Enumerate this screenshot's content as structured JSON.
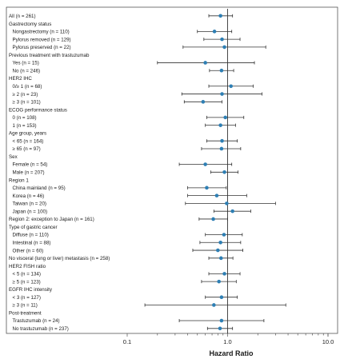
{
  "chart_data": {
    "type": "forest",
    "xlabel": "Hazard Ratio",
    "xscale": "log",
    "xlim": [
      0.1,
      10.0
    ],
    "xticks": [
      {
        "value": 0.1,
        "label": "0.1"
      },
      {
        "value": 1.0,
        "label": "1.0"
      },
      {
        "value": 10.0,
        "label": "10.0"
      }
    ],
    "reference_line": 1.0,
    "colors": {
      "point": "#2e7fb4",
      "ci": "#333333",
      "reference": "#1a1a1a",
      "frame": "#555555"
    },
    "rows": [
      {
        "label": "All (n = 261)",
        "indent": 0,
        "hr": 0.85,
        "lo": 0.65,
        "hi": 1.12
      },
      {
        "label": "Gastrectomy status",
        "indent": 0
      },
      {
        "label": "Nongastrectomy (n = 110)",
        "indent": 1,
        "hr": 0.74,
        "lo": 0.5,
        "hi": 1.1
      },
      {
        "label": "Pylorus removed (n = 129)",
        "indent": 1,
        "hr": 0.88,
        "lo": 0.58,
        "hi": 1.33
      },
      {
        "label": "Pylorus preserved (n = 22)",
        "indent": 1,
        "hr": 0.93,
        "lo": 0.36,
        "hi": 2.4
      },
      {
        "label": "Previous treatment with trastuzumab",
        "indent": 0
      },
      {
        "label": "Yes (n = 15)",
        "indent": 1,
        "hr": 0.6,
        "lo": 0.2,
        "hi": 1.85
      },
      {
        "label": "No (n = 246)",
        "indent": 1,
        "hr": 0.87,
        "lo": 0.66,
        "hi": 1.15
      },
      {
        "label": "HER2 IHC",
        "indent": 0
      },
      {
        "label": "0/≥ 1 (n = 68)",
        "indent": 1,
        "hr": 1.08,
        "lo": 0.65,
        "hi": 1.8
      },
      {
        "label": "≥ 2 (n = 23)",
        "indent": 1,
        "hr": 0.88,
        "lo": 0.35,
        "hi": 2.2
      },
      {
        "label": "≥ 3 (n = 101)",
        "indent": 1,
        "hr": 0.57,
        "lo": 0.37,
        "hi": 0.88
      },
      {
        "label": "ECOG performance status",
        "indent": 0
      },
      {
        "label": "0 (n = 108)",
        "indent": 1,
        "hr": 0.95,
        "lo": 0.62,
        "hi": 1.45
      },
      {
        "label": "1 (n = 153)",
        "indent": 1,
        "hr": 0.85,
        "lo": 0.6,
        "hi": 1.2
      },
      {
        "label": "Age group, years",
        "indent": 0
      },
      {
        "label": "< 65 (n = 164)",
        "indent": 1,
        "hr": 0.88,
        "lo": 0.62,
        "hi": 1.25
      },
      {
        "label": "≥ 65 (n = 97)",
        "indent": 1,
        "hr": 0.87,
        "lo": 0.55,
        "hi": 1.35
      },
      {
        "label": "Sex",
        "indent": 0
      },
      {
        "label": "Female (n = 54)",
        "indent": 1,
        "hr": 0.6,
        "lo": 0.33,
        "hi": 1.1
      },
      {
        "label": "Male (n = 207)",
        "indent": 1,
        "hr": 0.93,
        "lo": 0.68,
        "hi": 1.27
      },
      {
        "label": "Region 1",
        "indent": 0
      },
      {
        "label": "China mainland (n = 95)",
        "indent": 1,
        "hr": 0.62,
        "lo": 0.4,
        "hi": 0.97
      },
      {
        "label": "Korea (n = 46)",
        "indent": 1,
        "hr": 0.78,
        "lo": 0.4,
        "hi": 1.55
      },
      {
        "label": "Taiwan (n = 20)",
        "indent": 1,
        "hr": 0.98,
        "lo": 0.38,
        "hi": 3.0
      },
      {
        "label": "Japan (n = 100)",
        "indent": 1,
        "hr": 1.12,
        "lo": 0.73,
        "hi": 1.7
      },
      {
        "label": "Region 2: exception to Japan (n = 161)",
        "indent": 0,
        "hr": 0.72,
        "lo": 0.52,
        "hi": 1.0
      },
      {
        "label": "Type of gastric cancer",
        "indent": 0
      },
      {
        "label": "Diffuse (n = 110)",
        "indent": 1,
        "hr": 0.92,
        "lo": 0.6,
        "hi": 1.4
      },
      {
        "label": "Intestinal (n = 88)",
        "indent": 1,
        "hr": 0.85,
        "lo": 0.53,
        "hi": 1.35
      },
      {
        "label": "Other (n = 60)",
        "indent": 1,
        "hr": 0.8,
        "lo": 0.45,
        "hi": 1.42
      },
      {
        "label": "No visceral (lung or liver) metastasis (n = 258)",
        "indent": 0,
        "hr": 0.86,
        "lo": 0.65,
        "hi": 1.13
      },
      {
        "label": "HER2 FISH ratio",
        "indent": 0
      },
      {
        "label": "< 5 (n = 134)",
        "indent": 1,
        "hr": 0.93,
        "lo": 0.65,
        "hi": 1.33
      },
      {
        "label": "≥ 5 (n = 123)",
        "indent": 1,
        "hr": 0.82,
        "lo": 0.55,
        "hi": 1.22
      },
      {
        "label": "EGFR IHC intensity",
        "indent": 0
      },
      {
        "label": "< 3 (n = 127)",
        "indent": 1,
        "hr": 0.87,
        "lo": 0.6,
        "hi": 1.25
      },
      {
        "label": "≥ 3 (n = 11)",
        "indent": 1,
        "hr": 0.73,
        "lo": 0.15,
        "hi": 3.8
      },
      {
        "label": "Post-treatment",
        "indent": 0
      },
      {
        "label": "Trastuzumab (n = 24)",
        "indent": 1,
        "hr": 0.87,
        "lo": 0.33,
        "hi": 2.3
      },
      {
        "label": "No trastuzumab (n = 237)",
        "indent": 1,
        "hr": 0.84,
        "lo": 0.63,
        "hi": 1.12
      }
    ]
  }
}
